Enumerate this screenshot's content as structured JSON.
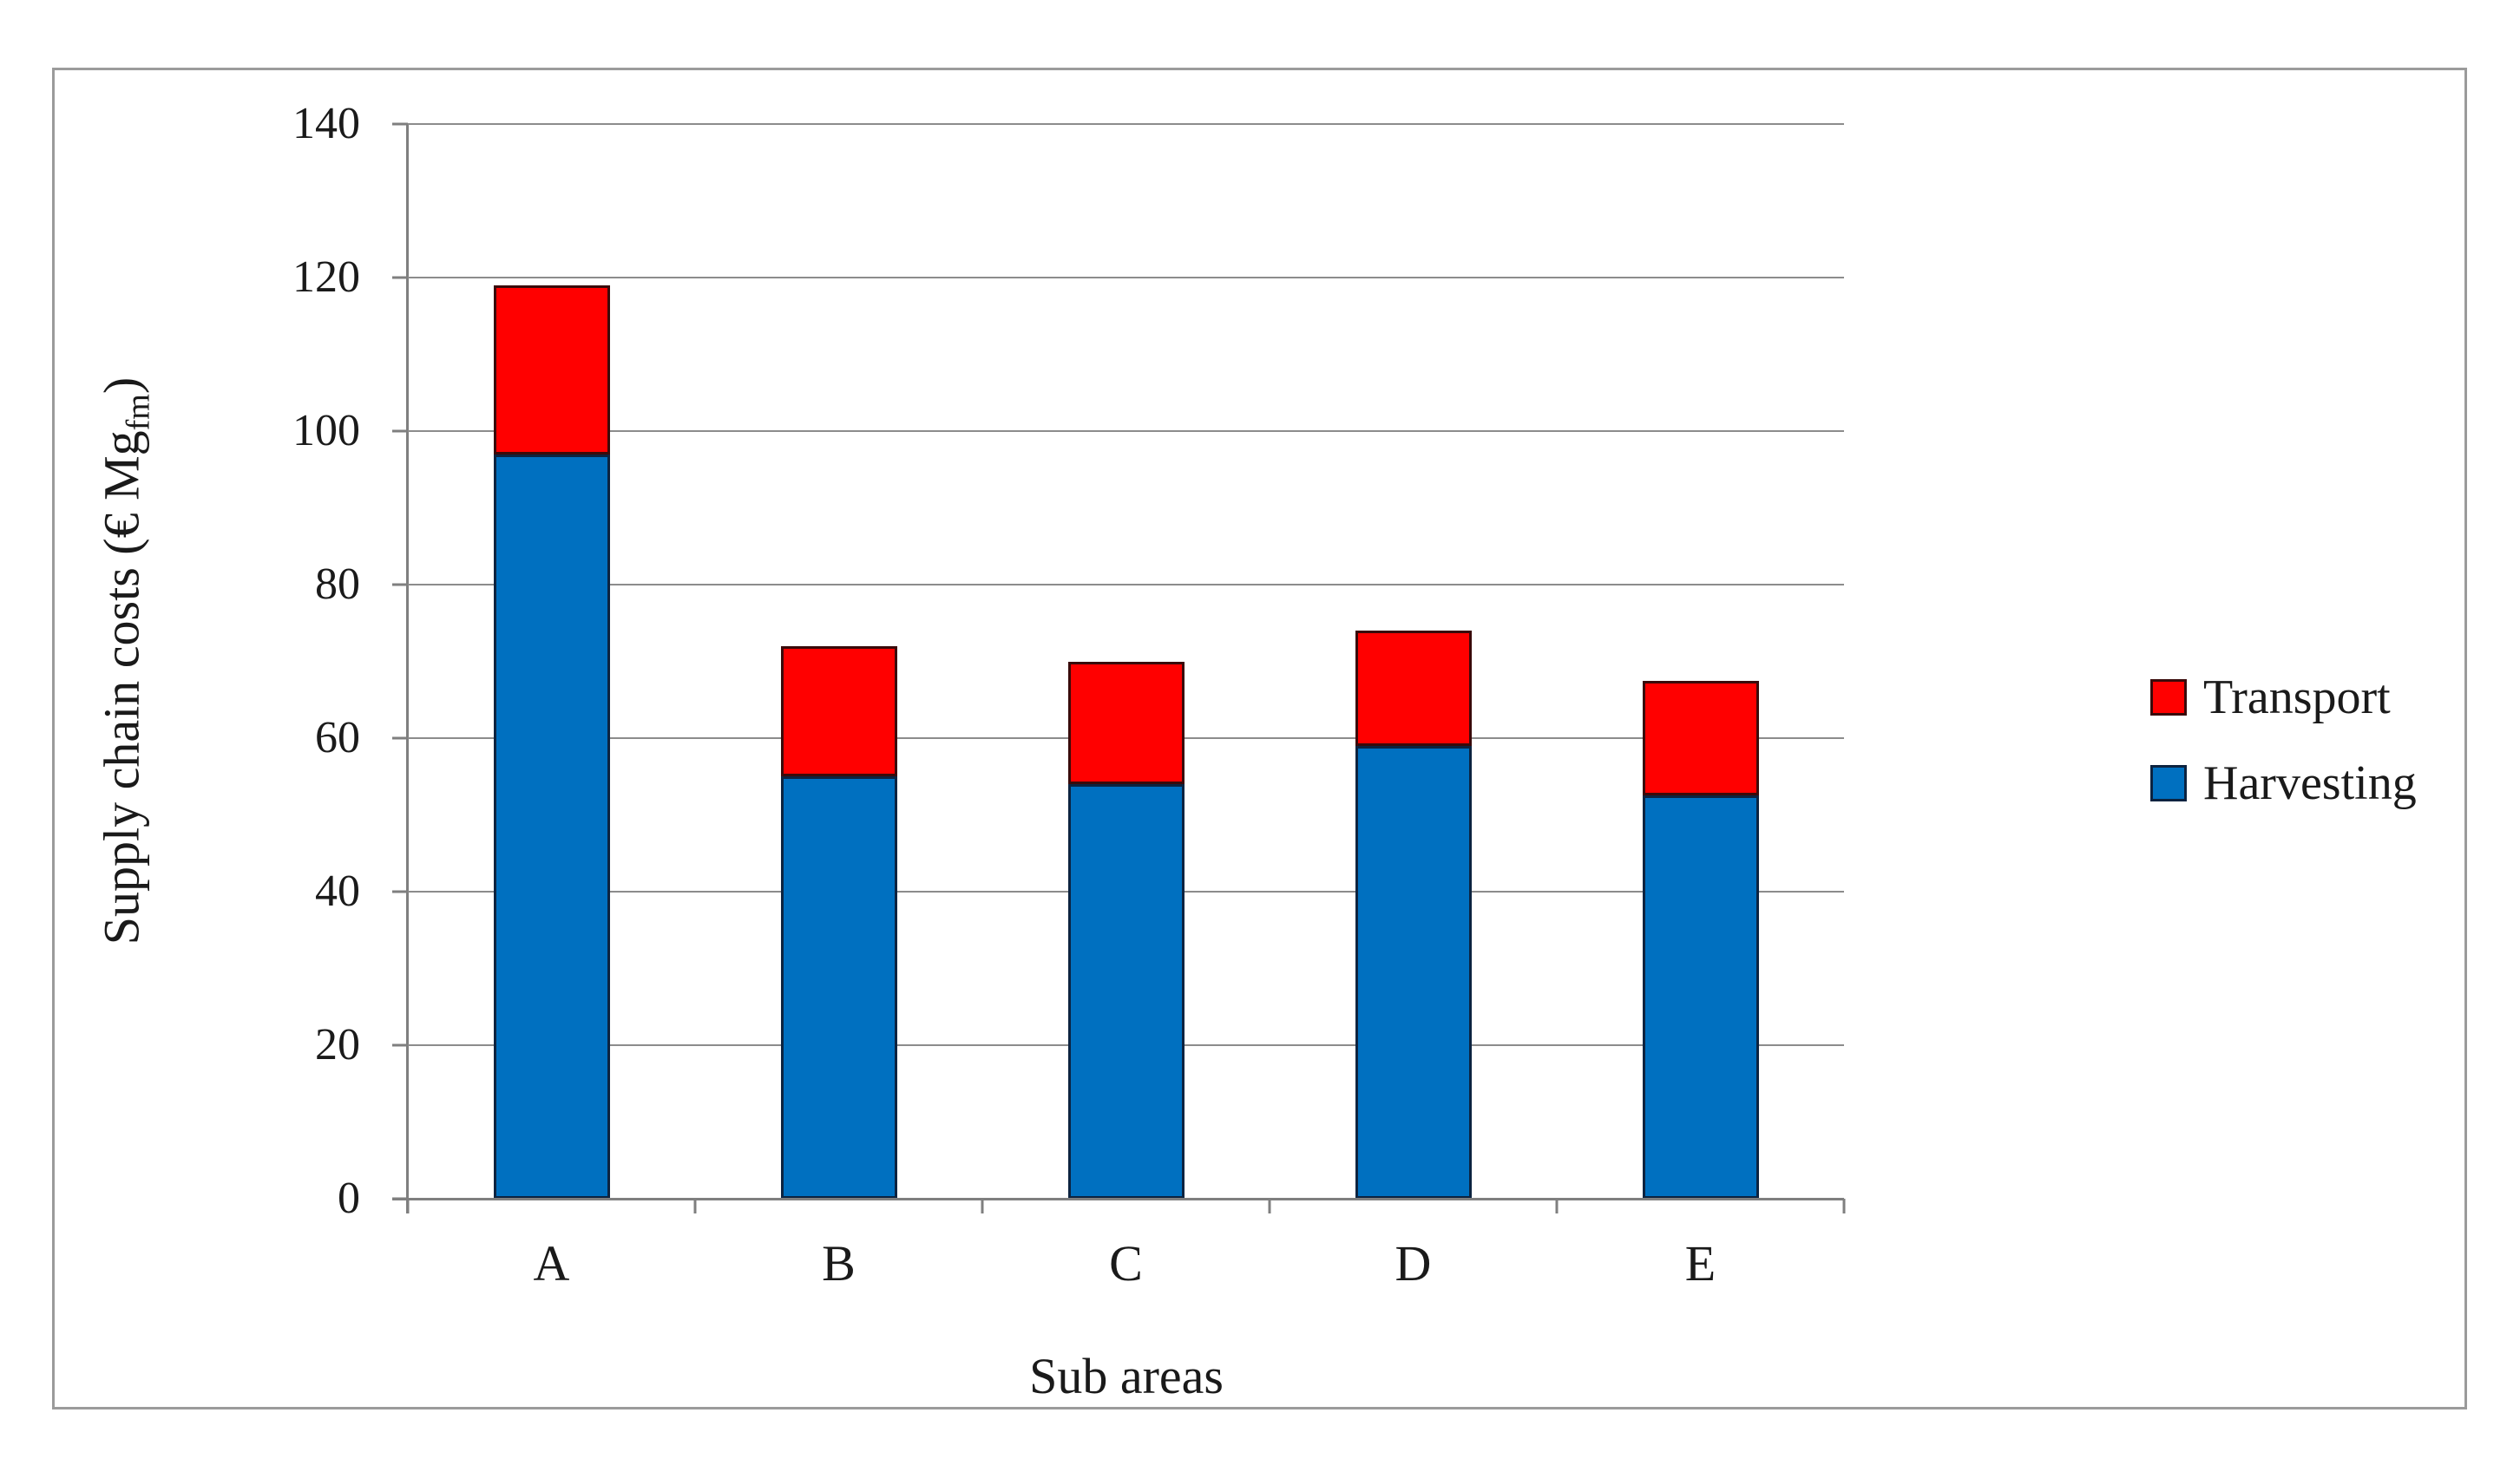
{
  "figure": {
    "y_axis_title_main": "Supply chain costs (€ Mg",
    "y_axis_title_subscript": "fm",
    "y_axis_title_close": ")",
    "x_axis_title": "Sub areas"
  },
  "legend": [
    {
      "label": "Transport",
      "color": "#FF0000",
      "border_color": "#3a0a0a"
    },
    {
      "label": "Harvesting",
      "color": "#0070C0",
      "border_color": "#0c2340"
    }
  ],
  "colors": {
    "gridline": "#8C8C8C",
    "axis": "#7F7F7F",
    "frame_border": "#9B9B9B",
    "text": "#1A1A1A",
    "background": "#FFFFFF"
  },
  "chart_data": {
    "type": "bar",
    "stacked": true,
    "title": "",
    "xlabel": "Sub areas",
    "ylabel": "Supply chain costs (€ Mgfm)",
    "categories": [
      "A",
      "B",
      "C",
      "D",
      "E"
    ],
    "series": [
      {
        "name": "Harvesting",
        "color": "#0070C0",
        "border_color": "#0c2340",
        "values": [
          97,
          55,
          54,
          59,
          52.5
        ]
      },
      {
        "name": "Transport",
        "color": "#FF0000",
        "border_color": "#3a0a0a",
        "values": [
          22,
          17,
          16,
          15,
          15
        ]
      }
    ],
    "stack_totals": [
      119,
      72,
      70,
      74,
      67.5
    ],
    "ylim": [
      0,
      140
    ],
    "yticks": [
      0,
      20,
      40,
      60,
      80,
      100,
      120,
      140
    ],
    "grid": true,
    "legend_position": "right"
  }
}
